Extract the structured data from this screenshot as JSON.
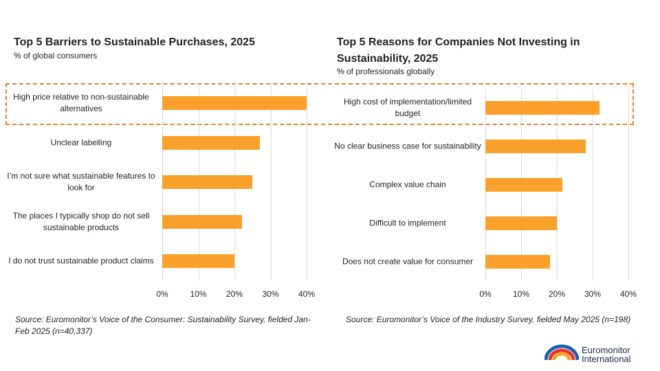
{
  "chart_data": [
    {
      "type": "bar",
      "orientation": "horizontal",
      "title": "Top 5 Barriers to Sustainable Purchases, 2025",
      "subtitle": "% of global consumers",
      "categories": [
        "High price relative to non-sustainable alternatives",
        "Unclear labelling",
        "I’m not sure what sustainable features to look for",
        "The places I typically shop do not sell sustainable products",
        "I do not trust sustainable product claims"
      ],
      "values": [
        40,
        27,
        25,
        22,
        20
      ],
      "color": "#f9a12a",
      "xlim": [
        0,
        40
      ],
      "xticks": [
        {
          "value": 0,
          "label": "0%"
        },
        {
          "value": 10,
          "label": "10%"
        },
        {
          "value": 20,
          "label": "20%"
        },
        {
          "value": 30,
          "label": "30%"
        },
        {
          "value": 40,
          "label": "40%"
        }
      ],
      "grid": true,
      "source": "Source: Euromonitor’s Voice of the Consumer: Sustainability Survey, fielded Jan-Feb 2025 (n=40,337)"
    },
    {
      "type": "bar",
      "orientation": "horizontal",
      "title": "Top 5 Reasons for Companies Not Investing in Sustainability, 2025",
      "subtitle": "% of professionals globally",
      "categories": [
        "High cost of implementation/limited budget",
        "No clear business case for sustainability",
        "Complex value chain",
        "Difficult to implement",
        "Does not create value for consumer"
      ],
      "values": [
        32,
        28,
        21.5,
        20,
        18
      ],
      "color": "#f9a12a",
      "xlim": [
        0,
        40
      ],
      "xticks": [
        {
          "value": 0,
          "label": "0%"
        },
        {
          "value": 10,
          "label": "10%"
        },
        {
          "value": 20,
          "label": "20%"
        },
        {
          "value": 30,
          "label": "30%"
        },
        {
          "value": 40,
          "label": "40%"
        }
      ],
      "grid": true,
      "source": "Source: Euromonitor’s Voice of the Industry Survey, fielded May 2025 (n=198)"
    }
  ],
  "logo": [
    "Euromonitor",
    "International"
  ]
}
